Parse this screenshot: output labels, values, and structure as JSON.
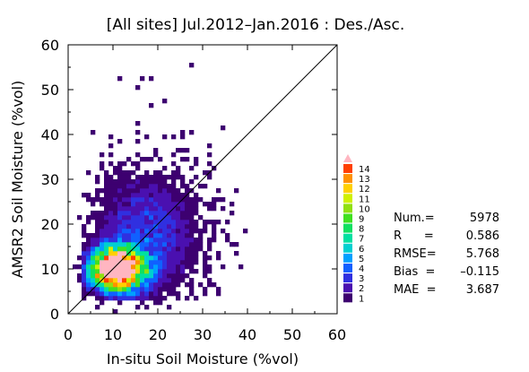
{
  "title": "[All sites] Jul.2012–Jan.2016 : Des./Asc.",
  "chart_data": {
    "type": "heatmap",
    "title": "[All sites] Jul.2012–Jan.2016 : Des./Asc.",
    "xlabel": "In-situ Soil Moisture (%vol)",
    "ylabel": "AMSR2 Soil Moisture (%vol)",
    "xlim": [
      0,
      60
    ],
    "ylim": [
      0,
      60
    ],
    "x_ticks": [
      "0",
      "10",
      "20",
      "30",
      "40",
      "50",
      "60"
    ],
    "y_ticks": [
      "0",
      "10",
      "20",
      "30",
      "40",
      "50",
      "60"
    ],
    "bin_size": 1,
    "one_to_one_line": true,
    "colorbar": {
      "labels": [
        "1",
        "2",
        "3",
        "4",
        "5",
        "6",
        "7",
        "8",
        "9",
        "10",
        "11",
        "12",
        "13",
        "14"
      ],
      "colors": [
        "#3d0070",
        "#4a10b0",
        "#3030e0",
        "#1060ff",
        "#00a0ff",
        "#00d0d0",
        "#00e0a0",
        "#10e060",
        "#40e020",
        "#90e010",
        "#d0f000",
        "#ffd000",
        "#ff9000",
        "#ff4000"
      ],
      "overflow_color": "#ffb6c1"
    },
    "stats": {
      "num": {
        "label": "Num.=",
        "value": "5978"
      },
      "r": {
        "label": "R      =",
        "value": "0.586"
      },
      "rmse": {
        "label": "RMSE=",
        "value": "5.768"
      },
      "bias": {
        "label": "Bias  =",
        "value": "–0.115"
      },
      "mae": {
        "label": "MAE  =",
        "value": "3.687"
      }
    }
  }
}
